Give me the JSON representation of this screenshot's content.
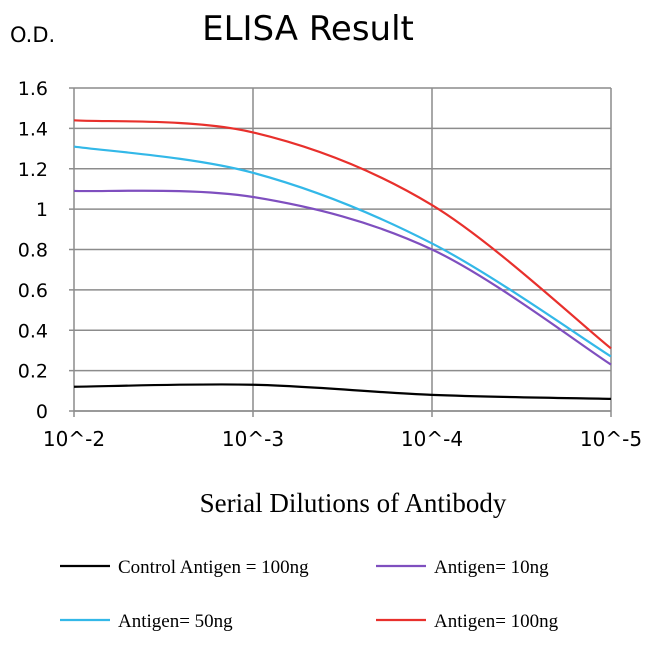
{
  "chart_data": {
    "type": "line",
    "title": "ELISA Result",
    "ylabel": "O.D.",
    "xlabel": "Serial Dilutions of Antibody",
    "x": [
      0.01,
      0.001,
      0.0001,
      1e-05
    ],
    "x_tick_labels": [
      "10^-2",
      "10^-3",
      "10^-4",
      "10^-5"
    ],
    "x_scale": "log",
    "ylim": [
      0,
      1.6
    ],
    "y_ticks": [
      0,
      0.2,
      0.4,
      0.6,
      0.8,
      1,
      1.2,
      1.4,
      1.6
    ],
    "y_tick_labels": [
      "0",
      "0.2",
      "0.4",
      "0.6",
      "0.8",
      "1",
      "1.2",
      "1.4",
      "1.6"
    ],
    "grid": true,
    "legend_position": "bottom",
    "series": [
      {
        "name": "Control Antigen = 100ng",
        "color": "#000000",
        "values": [
          0.12,
          0.13,
          0.08,
          0.06
        ]
      },
      {
        "name": "Antigen= 10ng",
        "color": "#7f4fbf",
        "values": [
          1.09,
          1.06,
          0.8,
          0.23
        ]
      },
      {
        "name": "Antigen= 50ng",
        "color": "#33b8e8",
        "values": [
          1.31,
          1.18,
          0.83,
          0.27
        ]
      },
      {
        "name": "Antigen= 100ng",
        "color": "#e8302c",
        "values": [
          1.44,
          1.38,
          1.02,
          0.31
        ]
      }
    ]
  }
}
